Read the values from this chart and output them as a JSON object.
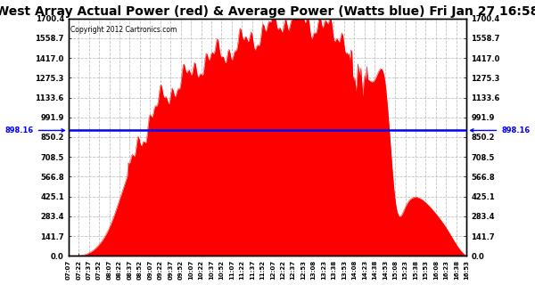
{
  "title": "West Array Actual Power (red) & Average Power (Watts blue) Fri Jan 27 16:58",
  "copyright": "Copyright 2012 Cartronics.com",
  "avg_power": 898.16,
  "ymax": 1700.4,
  "ymin": 0.0,
  "yticks": [
    0.0,
    141.7,
    283.4,
    425.1,
    566.8,
    708.5,
    850.2,
    991.9,
    1133.6,
    1275.3,
    1417.0,
    1558.7,
    1700.4
  ],
  "fill_color": "#FF0000",
  "line_color": "#0000FF",
  "bg_color": "#FFFFFF",
  "grid_color": "#BBBBBB",
  "title_fontsize": 10,
  "xtick_labels": [
    "07:07",
    "07:22",
    "07:37",
    "07:52",
    "08:07",
    "08:22",
    "08:37",
    "08:52",
    "09:07",
    "09:22",
    "09:37",
    "09:52",
    "10:07",
    "10:22",
    "10:37",
    "10:52",
    "11:07",
    "11:22",
    "11:37",
    "11:52",
    "12:07",
    "12:22",
    "12:37",
    "12:53",
    "13:08",
    "13:23",
    "13:38",
    "13:53",
    "14:08",
    "14:23",
    "14:38",
    "14:53",
    "15:08",
    "15:23",
    "15:38",
    "15:53",
    "16:08",
    "16:23",
    "16:38",
    "16:53"
  ],
  "solar_y": [
    0,
    0,
    20,
    80,
    200,
    400,
    620,
    820,
    980,
    1100,
    1180,
    1250,
    1300,
    1380,
    1420,
    1450,
    1480,
    1520,
    1560,
    1600,
    1650,
    1680,
    1700,
    1690,
    1660,
    1640,
    1600,
    1560,
    1300,
    1280,
    1260,
    1250,
    400,
    350,
    420,
    380,
    300,
    200,
    80,
    0
  ]
}
